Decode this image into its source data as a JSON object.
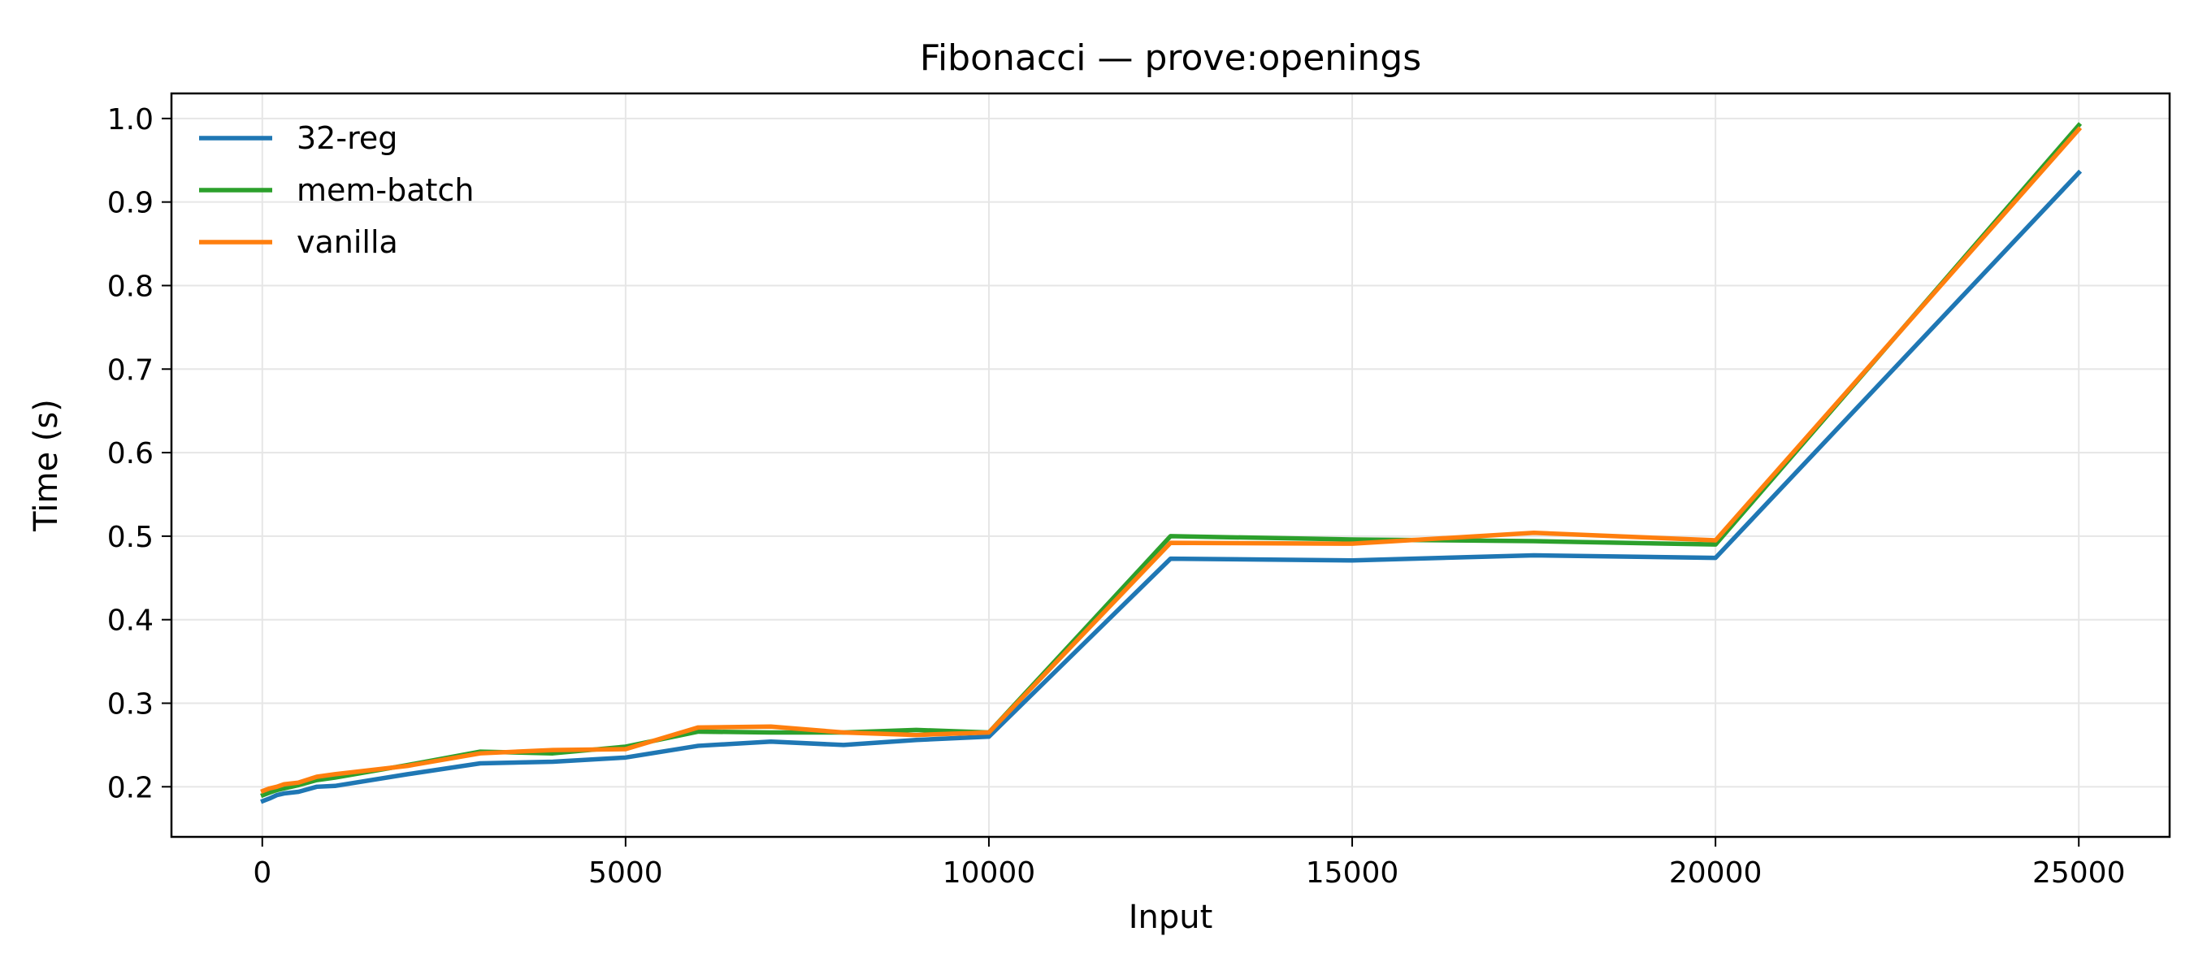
{
  "chart_data": {
    "type": "line",
    "title": "Fibonacci — prove:openings",
    "xlabel": "Input",
    "ylabel": "Time (s)",
    "xlim": [
      -1250,
      26250
    ],
    "ylim": [
      0.14,
      1.03
    ],
    "xticks": [
      0,
      5000,
      10000,
      15000,
      20000,
      25000
    ],
    "yticks": [
      0.2,
      0.3,
      0.4,
      0.5,
      0.6,
      0.7,
      0.8,
      0.9,
      1.0
    ],
    "xtick_labels": [
      "0",
      "5000",
      "10000",
      "15000",
      "20000",
      "25000"
    ],
    "ytick_labels": [
      "0.2",
      "0.3",
      "0.4",
      "0.5",
      "0.6",
      "0.7",
      "0.8",
      "0.9",
      "1.0"
    ],
    "grid": true,
    "legend_position": "top-left",
    "x": [
      10,
      100,
      200,
      300,
      500,
      750,
      1000,
      2000,
      3000,
      4000,
      5000,
      6000,
      7000,
      8000,
      9000,
      10000,
      12500,
      15000,
      17500,
      20000,
      25000
    ],
    "series": [
      {
        "name": "32-reg",
        "color": "#1f77b4",
        "values": [
          0.183,
          0.186,
          0.19,
          0.192,
          0.194,
          0.2,
          0.201,
          0.215,
          0.228,
          0.23,
          0.235,
          0.249,
          0.254,
          0.25,
          0.256,
          0.26,
          0.473,
          0.471,
          0.477,
          0.474,
          0.935
        ]
      },
      {
        "name": "mem-batch",
        "color": "#2ca02c",
        "values": [
          0.19,
          0.193,
          0.196,
          0.198,
          0.202,
          0.208,
          0.211,
          0.226,
          0.242,
          0.24,
          0.248,
          0.266,
          0.265,
          0.265,
          0.268,
          0.265,
          0.5,
          0.496,
          0.494,
          0.49,
          0.992
        ]
      },
      {
        "name": "vanilla",
        "color": "#ff7f0e",
        "values": [
          0.195,
          0.198,
          0.2,
          0.203,
          0.205,
          0.212,
          0.215,
          0.225,
          0.24,
          0.244,
          0.245,
          0.271,
          0.272,
          0.265,
          0.262,
          0.265,
          0.492,
          0.491,
          0.504,
          0.495,
          0.987
        ]
      }
    ]
  }
}
